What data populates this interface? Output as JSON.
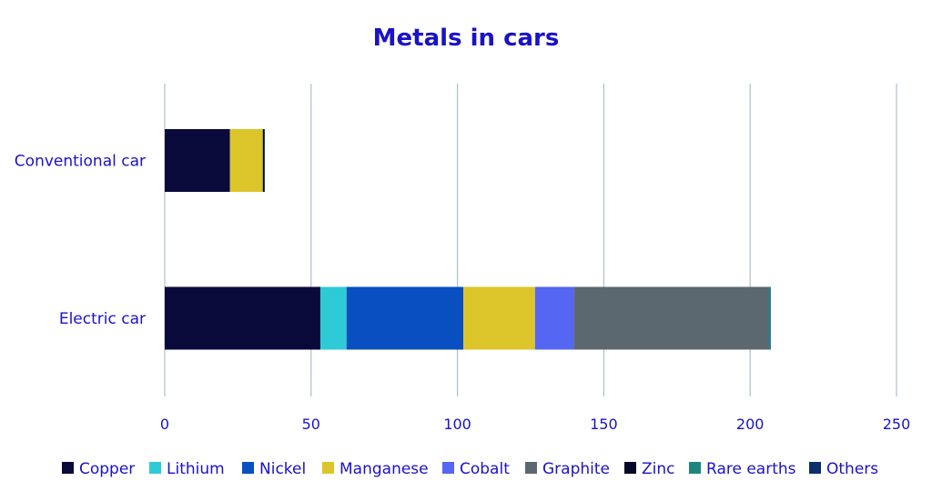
{
  "chart_data": {
    "type": "bar",
    "orientation": "horizontal",
    "stacked": true,
    "title": "Metals in cars",
    "xlabel": "",
    "ylabel": "",
    "xlim": [
      0,
      250
    ],
    "x_ticks": [
      0,
      50,
      100,
      150,
      200,
      250
    ],
    "grid": true,
    "legend_position": "bottom",
    "categories": [
      "Conventional car",
      "Electric car"
    ],
    "series": [
      {
        "name": "Copper",
        "color": "#0a0a3a",
        "values": [
          22.3,
          53.2
        ]
      },
      {
        "name": "Lithium",
        "color": "#2ecbd6",
        "values": [
          0,
          8.9
        ]
      },
      {
        "name": "Nickel",
        "color": "#0a4fc2",
        "values": [
          0,
          39.9
        ]
      },
      {
        "name": "Manganese",
        "color": "#dcc52a",
        "values": [
          11.2,
          24.5
        ]
      },
      {
        "name": "Cobalt",
        "color": "#5566f2",
        "values": [
          0,
          13.3
        ]
      },
      {
        "name": "Graphite",
        "color": "#5b686f",
        "values": [
          0,
          66.3
        ]
      },
      {
        "name": "Zinc",
        "color": "#080828",
        "values": [
          0.4,
          0.1
        ]
      },
      {
        "name": "Rare earths",
        "color": "#1d8580",
        "values": [
          0,
          0.5
        ]
      },
      {
        "name": "Others",
        "color": "#0a2f6e",
        "values": [
          0.3,
          0.3
        ]
      }
    ]
  }
}
